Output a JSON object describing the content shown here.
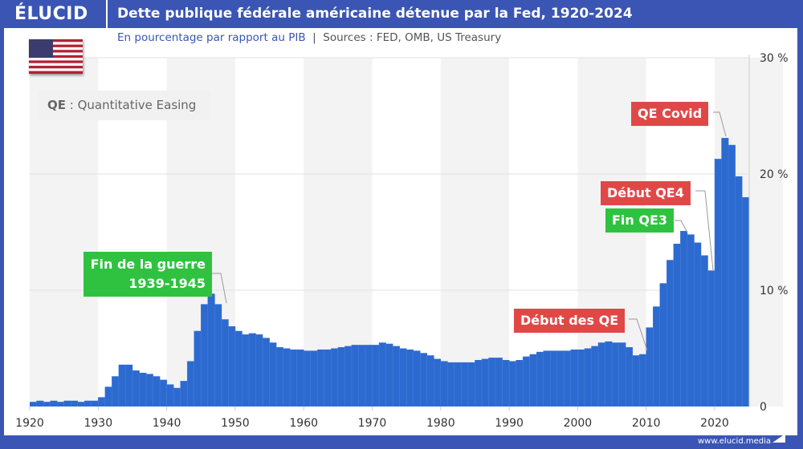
{
  "header": {
    "logo": "ÉLUCID",
    "title": "Dette publique fédérale américaine détenue par la Fed, 1920-2024",
    "subtitle": "En pourcentage par rapport au PIB",
    "sources": "Sources : FED, OMB, US Treasury",
    "footer": "www.elucid.media"
  },
  "legend": {
    "abbr": "QE",
    "text": " : Quantitative Easing"
  },
  "colors": {
    "frame": "#3a55b4",
    "bar": "#2d6ad0",
    "red_label": "#e04848",
    "green_label": "#2ec240"
  },
  "annotations": {
    "war_1": "Fin de la guerre",
    "war_2": "1939-1945",
    "qe_start": "Début des QE",
    "qe3_end": "Fin QE3",
    "qe4_start": "Début QE4",
    "qe_covid": "QE Covid"
  },
  "chart_data": {
    "type": "bar",
    "title": "Dette publique fédérale américaine détenue par la Fed, 1920-2024",
    "xlabel": "",
    "ylabel": "",
    "x_ticks": [
      "1920",
      "1930",
      "1940",
      "1950",
      "1960",
      "1970",
      "1980",
      "1990",
      "2000",
      "2010",
      "2020"
    ],
    "y_ticks": [
      "0",
      "10 %",
      "20 %",
      "30 %"
    ],
    "ylim": [
      0,
      30
    ],
    "grid": true,
    "y_axis_position": "right",
    "start_year": 1920,
    "values": [
      0.4,
      0.5,
      0.4,
      0.5,
      0.4,
      0.5,
      0.5,
      0.4,
      0.5,
      0.5,
      0.8,
      1.7,
      2.6,
      3.6,
      3.6,
      3.1,
      2.9,
      2.8,
      2.6,
      2.3,
      1.9,
      1.6,
      2.2,
      3.9,
      6.5,
      8.8,
      9.7,
      8.8,
      7.5,
      6.9,
      6.5,
      6.2,
      6.3,
      6.2,
      5.9,
      5.5,
      5.1,
      5.0,
      4.9,
      4.9,
      4.8,
      4.8,
      4.9,
      4.9,
      5.0,
      5.1,
      5.2,
      5.3,
      5.3,
      5.3,
      5.3,
      5.5,
      5.4,
      5.2,
      5.0,
      4.9,
      4.8,
      4.6,
      4.4,
      4.1,
      3.9,
      3.8,
      3.8,
      3.8,
      3.8,
      4.0,
      4.1,
      4.2,
      4.2,
      4.0,
      3.9,
      4.0,
      4.3,
      4.5,
      4.7,
      4.8,
      4.8,
      4.8,
      4.8,
      4.9,
      4.9,
      5.0,
      5.2,
      5.5,
      5.6,
      5.5,
      5.5,
      5.1,
      4.4,
      4.5,
      6.8,
      8.6,
      10.6,
      12.6,
      14.0,
      15.1,
      14.8,
      14.1,
      13.0,
      11.7,
      21.3,
      23.1,
      22.5,
      19.8,
      18.0
    ]
  }
}
